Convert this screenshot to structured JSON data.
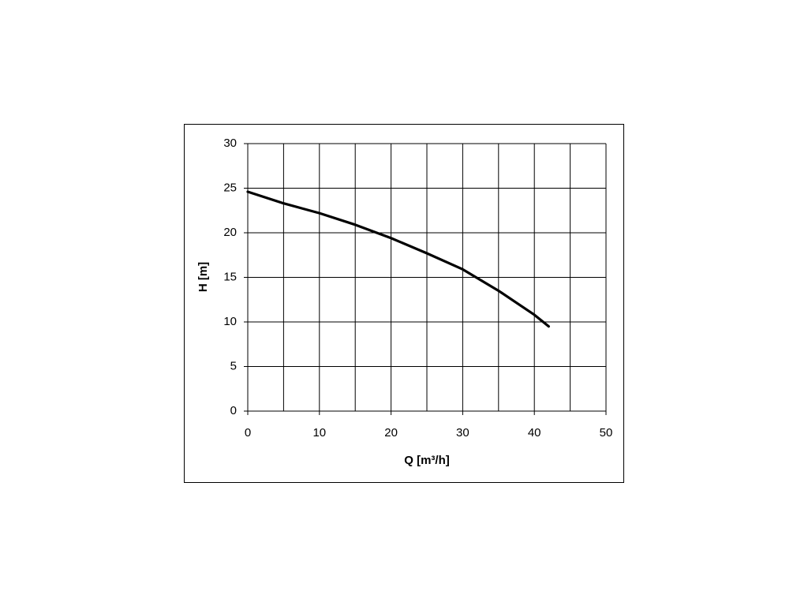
{
  "chart_data": {
    "type": "line",
    "x": [
      0,
      5,
      10,
      15,
      20,
      25,
      30,
      35,
      40,
      42
    ],
    "series": [
      {
        "color": "#000000",
        "values": [
          24.6,
          23.3,
          22.2,
          20.9,
          19.4,
          17.7,
          15.9,
          13.5,
          10.8,
          9.5
        ]
      }
    ],
    "xlabel": "Q [m³/h]",
    "ylabel": "H [m]",
    "xlim": [
      0,
      50
    ],
    "xticks": [
      0,
      10,
      20,
      30,
      40,
      50
    ],
    "xminorticks": [
      5,
      15,
      25,
      35,
      45
    ],
    "ylim": [
      0,
      30
    ],
    "yticks": [
      0,
      5,
      10,
      15,
      20,
      25,
      30
    ],
    "grid": true
  }
}
